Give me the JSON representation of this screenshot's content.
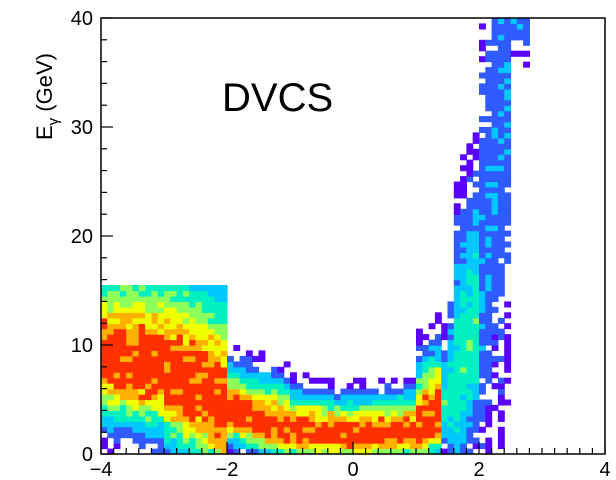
{
  "chart_data": {
    "type": "heatmap",
    "title": "",
    "annotation": "DVCS",
    "xlabel": "",
    "ylabel_main": "E",
    "ylabel_sub": "γ",
    "ylabel_unit": " (GeV)",
    "xlim": [
      -4,
      4
    ],
    "ylim": [
      0,
      40
    ],
    "xticks": [
      -4,
      -2,
      0,
      2,
      4
    ],
    "xtick_labels": [
      "−4",
      "−2",
      "0",
      "2",
      "4"
    ],
    "yticks": [
      0,
      10,
      20,
      30,
      40
    ],
    "ytick_labels": [
      "0",
      "10",
      "20",
      "30",
      "40"
    ],
    "grid": false,
    "colormap": [
      "#5a00ff",
      "#2f5bff",
      "#00c8ff",
      "#00f0c0",
      "#8cff5a",
      "#f0ff00",
      "#ffb000",
      "#ff3000"
    ],
    "ridge": {
      "description_points": [
        {
          "x": -3.9,
          "y": 8.5
        },
        {
          "x": -3.0,
          "y": 7.5
        },
        {
          "x": -2.0,
          "y": 3.8
        },
        {
          "x": -1.0,
          "y": 2.0
        },
        {
          "x": 0.0,
          "y": 1.5
        },
        {
          "x": 1.0,
          "y": 2.0
        },
        {
          "x": 1.6,
          "y": 5.0
        },
        {
          "x": 2.0,
          "y": 12.0
        },
        {
          "x": 2.3,
          "y": 25.0
        },
        {
          "x": 2.5,
          "y": 40.0
        }
      ]
    },
    "cutoff_y": 15.5
  }
}
